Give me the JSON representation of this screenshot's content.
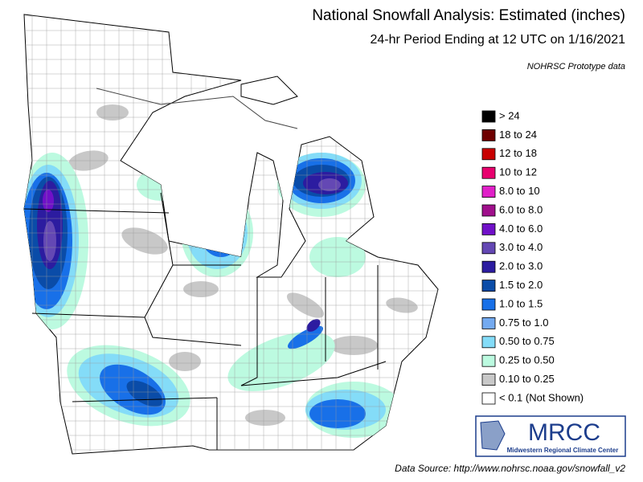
{
  "title": "National Snowfall Analysis: Estimated (inches)",
  "subtitle": "24-hr Period Ending at 12 UTC on 1/16/2021",
  "note": "NOHRSC Prototype data",
  "legend": [
    {
      "label": "> 24",
      "color": "#000000"
    },
    {
      "label": "18 to 24",
      "color": "#6e0000"
    },
    {
      "label": "12 to 18",
      "color": "#c80000"
    },
    {
      "label": "10 to 12",
      "color": "#e8006e"
    },
    {
      "label": "8.0 to 10",
      "color": "#e020c8"
    },
    {
      "label": "6.0 to 8.0",
      "color": "#a0108c"
    },
    {
      "label": "4.0 to 6.0",
      "color": "#7010c8"
    },
    {
      "label": "3.0 to 4.0",
      "color": "#6448b4"
    },
    {
      "label": "2.0 to 3.0",
      "color": "#2c1ca0"
    },
    {
      "label": "1.5 to 2.0",
      "color": "#0a4ca8"
    },
    {
      "label": "1.0 to 1.5",
      "color": "#1870e8"
    },
    {
      "label": "0.75 to 1.0",
      "color": "#74aaf0"
    },
    {
      "label": "0.50 to 0.75",
      "color": "#84dcf8"
    },
    {
      "label": "0.25 to 0.50",
      "color": "#bcfae0"
    },
    {
      "label": "0.10 to 0.25",
      "color": "#c8c8c8"
    },
    {
      "label": "< 0.1 (Not Shown)",
      "color": "#ffffff"
    }
  ],
  "logo": {
    "name": "MRCC",
    "subtitle": "Midwestern Regional Climate Center"
  },
  "source": "Data Source: http://www.nohrsc.noaa.gov/snowfall_v2"
}
